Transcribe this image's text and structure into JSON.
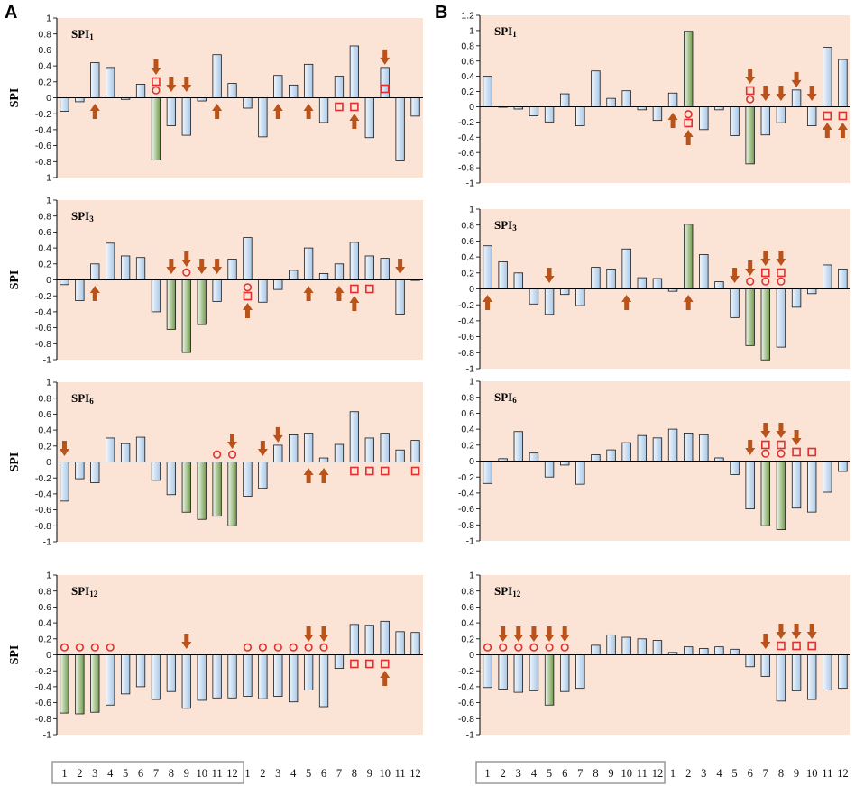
{
  "chart_data": [
    {
      "panel": "A",
      "title": "SPI1",
      "title_main": "SPI",
      "title_sub": "1",
      "type": "bar",
      "ylabel": "SPI",
      "ylim": [
        -1,
        1
      ],
      "yticks": [
        "1",
        "0.8",
        "0.6",
        "0.4",
        "0.2",
        "0",
        "-0.2",
        "-0.4",
        "-0.6",
        "-0.8",
        "-1"
      ],
      "values": [
        -0.17,
        -0.05,
        0.44,
        0.38,
        -0.02,
        0.17,
        -0.78,
        -0.35,
        -0.47,
        -0.04,
        0.54,
        0.18,
        -0.13,
        -0.49,
        0.28,
        0.16,
        0.42,
        -0.31,
        0.27,
        0.65,
        -0.5,
        0.38,
        -0.79,
        -0.23
      ],
      "green": [
        6
      ],
      "down_arrows": [
        6,
        7,
        8,
        21
      ],
      "up_arrows": [
        2,
        10,
        14,
        16,
        19
      ],
      "circles_up": [
        6
      ],
      "squares_up": [
        6,
        21
      ],
      "circles_down": [],
      "squares_down": [
        18,
        19
      ]
    },
    {
      "panel": "A",
      "title": "SPI3",
      "title_main": "SPI",
      "title_sub": "3",
      "type": "bar",
      "ylabel": "SPI",
      "ylim": [
        -1,
        1
      ],
      "yticks": [
        "1",
        "0.8",
        "0.6",
        "0.4",
        "0.2",
        "0",
        "-0.2",
        "-0.4",
        "-0.6",
        "-0.8",
        "-1"
      ],
      "values": [
        -0.06,
        -0.26,
        0.2,
        0.46,
        0.3,
        0.28,
        -0.4,
        -0.62,
        -0.91,
        -0.56,
        -0.27,
        0.26,
        0.53,
        -0.28,
        -0.12,
        0.12,
        0.4,
        0.08,
        0.2,
        0.47,
        0.3,
        0.27,
        -0.43,
        0
      ],
      "green": [
        7,
        8,
        9
      ],
      "down_arrows": [
        7,
        8,
        9,
        10,
        22
      ],
      "up_arrows": [
        2,
        12,
        16,
        18,
        19
      ],
      "circles_up": [
        8
      ],
      "squares_up": [],
      "circles_down": [
        12
      ],
      "squares_down": [
        12,
        19,
        20
      ]
    },
    {
      "panel": "A",
      "title": "SPI6",
      "title_main": "SPI",
      "title_sub": "6",
      "type": "bar",
      "ylabel": "SPI",
      "ylim": [
        -1,
        1
      ],
      "yticks": [
        "1",
        "0.8",
        "0.6",
        "0.4",
        "0.2",
        "0",
        "-0.2",
        "-0.4",
        "-0.6",
        "-0.8",
        "-1"
      ],
      "values": [
        -0.49,
        -0.21,
        -0.26,
        0.3,
        0.23,
        0.31,
        -0.23,
        -0.41,
        -0.63,
        -0.72,
        -0.68,
        -0.8,
        -0.43,
        -0.33,
        0.21,
        0.34,
        0.36,
        0.05,
        0.22,
        0.63,
        0.3,
        0.36,
        0.15,
        0.27
      ],
      "green": [
        8,
        9,
        10,
        11
      ],
      "down_arrows": [
        0,
        11,
        13,
        14
      ],
      "up_arrows": [
        16,
        17
      ],
      "circles_up": [
        10,
        11
      ],
      "squares_up": [],
      "circles_down": [],
      "squares_down": [
        19,
        20,
        21,
        23
      ]
    },
    {
      "panel": "A",
      "title": "SPI12",
      "title_main": "SPI",
      "title_sub": "12",
      "type": "bar",
      "ylabel": "SPI",
      "ylim": [
        -1,
        1
      ],
      "yticks": [
        "1",
        "0.8",
        "0.6",
        "0.4",
        "0.2",
        "0",
        "-0.2",
        "-0.4",
        "-0.6",
        "-0.8",
        "-1"
      ],
      "values": [
        -0.73,
        -0.74,
        -0.72,
        -0.63,
        -0.49,
        -0.4,
        -0.56,
        -0.46,
        -0.67,
        -0.57,
        -0.54,
        -0.54,
        -0.52,
        -0.55,
        -0.52,
        -0.59,
        -0.44,
        -0.65,
        -0.17,
        0.38,
        0.37,
        0.42,
        0.29,
        0.28
      ],
      "green": [
        0,
        1,
        2
      ],
      "down_arrows": [
        8,
        16,
        17
      ],
      "up_arrows": [
        21
      ],
      "circles_up": [
        0,
        1,
        2,
        3,
        12,
        13,
        14,
        15,
        16,
        17
      ],
      "squares_up": [],
      "circles_down": [],
      "squares_down": [
        19,
        20,
        21
      ]
    },
    {
      "panel": "B",
      "title": "SPI1",
      "title_main": "SPI",
      "title_sub": "1",
      "type": "bar",
      "ylabel": "",
      "ylim": [
        -1,
        1.2
      ],
      "yticks": [
        "1.2",
        "1",
        "0.8",
        "0.6",
        "0.4",
        "0.2",
        "0",
        "-0.2",
        "-0.4",
        "-0.6",
        "-0.8",
        "-1"
      ],
      "values": [
        0.4,
        0,
        -0.03,
        -0.12,
        -0.2,
        0.17,
        -0.25,
        0.47,
        0.11,
        0.21,
        -0.04,
        -0.18,
        0.18,
        0.99,
        -0.3,
        -0.04,
        -0.38,
        -0.75,
        -0.37,
        -0.21,
        0.22,
        -0.25,
        0.78,
        0.62
      ],
      "green": [
        13,
        17
      ],
      "down_arrows": [
        17,
        18,
        19,
        20,
        21
      ],
      "up_arrows": [
        12,
        13,
        22,
        23
      ],
      "circles_up": [
        17
      ],
      "squares_up": [
        17
      ],
      "circles_down": [
        13
      ],
      "squares_down": [
        13,
        22,
        23
      ]
    },
    {
      "panel": "B",
      "title": "SPI3",
      "title_main": "SPI",
      "title_sub": "3",
      "type": "bar",
      "ylabel": "",
      "ylim": [
        -1,
        1
      ],
      "yticks": [
        "1",
        "0.8",
        "0.6",
        "0.4",
        "0.2",
        "0",
        "-0.2",
        "-0.4",
        "-0.6",
        "-0.8",
        "-1"
      ],
      "values": [
        0.54,
        0.34,
        0.2,
        -0.19,
        -0.32,
        -0.07,
        -0.21,
        0.27,
        0.25,
        0.5,
        0.14,
        0.13,
        -0.03,
        0.81,
        0.43,
        0.09,
        -0.36,
        -0.71,
        -0.89,
        -0.73,
        -0.23,
        -0.06,
        0.3,
        0.25
      ],
      "green": [
        13,
        17,
        18
      ],
      "down_arrows": [
        4,
        16,
        17,
        18,
        19
      ],
      "up_arrows": [
        0,
        9,
        13
      ],
      "circles_up": [
        17,
        18,
        19
      ],
      "squares_up": [
        18,
        19
      ],
      "circles_down": [],
      "squares_down": []
    },
    {
      "panel": "B",
      "title": "SPI6",
      "title_main": "SPI",
      "title_sub": "6",
      "type": "bar",
      "ylabel": "",
      "ylim": [
        -1,
        1
      ],
      "yticks": [
        "1",
        "0.8",
        "0.6",
        "0.4",
        "0.2",
        "0",
        "-0.2",
        "-0.4",
        "-0.6",
        "-0.8",
        "-1"
      ],
      "values": [
        -0.28,
        0.03,
        0.37,
        0.1,
        -0.2,
        -0.05,
        -0.29,
        0.08,
        0.14,
        0.23,
        0.32,
        0.29,
        0.4,
        0.35,
        0.33,
        0.04,
        -0.17,
        -0.6,
        -0.81,
        -0.86,
        -0.59,
        -0.64,
        -0.39,
        -0.13
      ],
      "green": [
        18,
        19
      ],
      "down_arrows": [
        17,
        18,
        19,
        20
      ],
      "up_arrows": [],
      "circles_up": [
        18,
        19
      ],
      "squares_up": [
        18,
        19,
        20,
        21
      ],
      "circles_down": [],
      "squares_down": []
    },
    {
      "panel": "B",
      "title": "SPI12",
      "title_main": "SPI",
      "title_sub": "12",
      "type": "bar",
      "ylabel": "",
      "ylim": [
        -1,
        1
      ],
      "yticks": [
        "1",
        "0.8",
        "0.6",
        "0.4",
        "0.2",
        "0",
        "-0.2",
        "-0.4",
        "-0.6",
        "-0.8",
        "-1"
      ],
      "values": [
        -0.41,
        -0.43,
        -0.47,
        -0.45,
        -0.63,
        -0.46,
        -0.42,
        0.12,
        0.25,
        0.22,
        0.2,
        0.18,
        0.03,
        0.1,
        0.08,
        0.1,
        0.07,
        -0.15,
        -0.27,
        -0.58,
        -0.45,
        -0.56,
        -0.44,
        -0.42
      ],
      "green": [
        4
      ],
      "down_arrows": [
        1,
        2,
        3,
        4,
        5,
        18,
        19,
        20,
        21
      ],
      "up_arrows": [],
      "circles_up": [
        0,
        1,
        2,
        3,
        4,
        5
      ],
      "squares_up": [
        19,
        20,
        21
      ],
      "circles_down": [],
      "squares_down": []
    }
  ],
  "panel_labels": [
    "A",
    "B"
  ],
  "x_tick_labels": [
    "1",
    "2",
    "3",
    "4",
    "5",
    "6",
    "7",
    "8",
    "9",
    "10",
    "11",
    "12",
    "1",
    "2",
    "3",
    "4",
    "5",
    "6",
    "7",
    "8",
    "9",
    "10",
    "11",
    "12"
  ],
  "colors": {
    "background": "#fbe4d6",
    "bar_blue_dark": "#a9c7e6",
    "bar_blue_light": "#f1f7fd",
    "bar_green_dark": "#6f9a4c",
    "bar_green_light": "#f0f7ea",
    "arrow": "#b8531c",
    "marker": "#e03030"
  }
}
